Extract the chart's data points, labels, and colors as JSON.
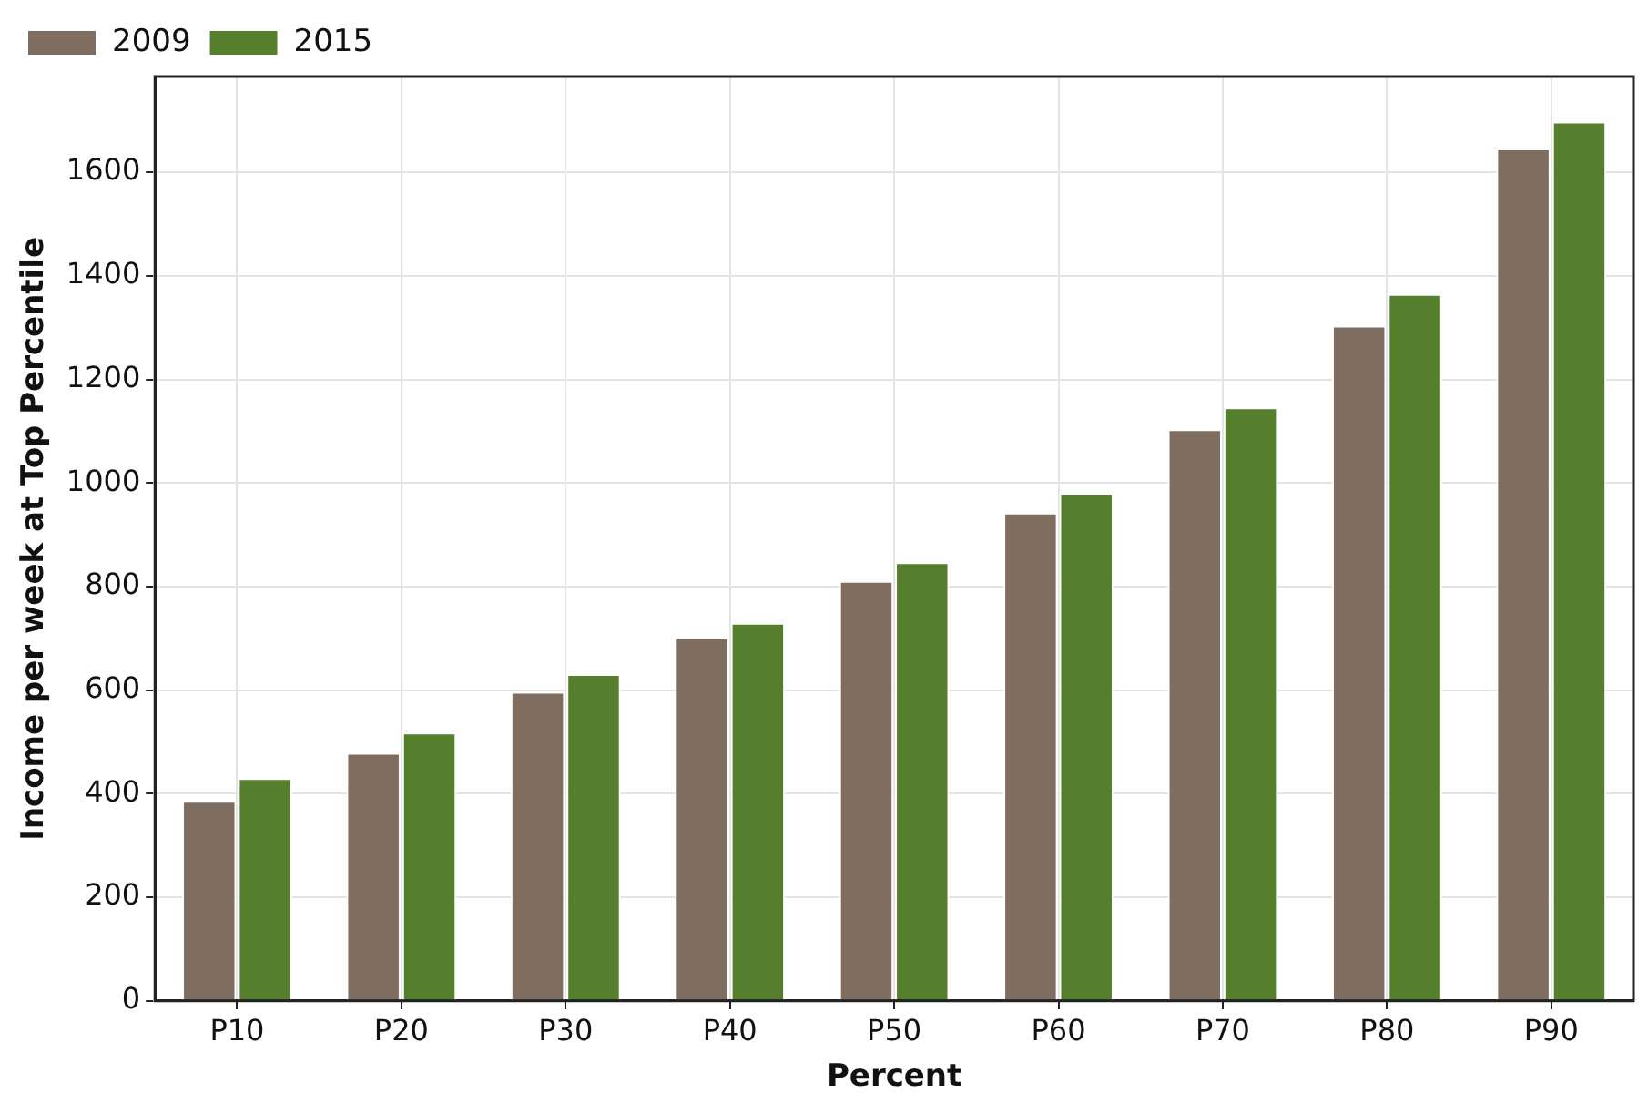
{
  "chart_data": {
    "type": "bar",
    "xlabel": "Percent",
    "ylabel": "Income per week at Top Percentile",
    "categories": [
      "P10",
      "P20",
      "P30",
      "P40",
      "P50",
      "P60",
      "P70",
      "P80",
      "P90"
    ],
    "series": [
      {
        "name": "2009",
        "color": "#7f6d5f",
        "values": [
          386,
          479,
          597,
          702,
          811,
          943,
          1104,
          1304,
          1646
        ]
      },
      {
        "name": "2015",
        "color": "#557f2d",
        "values": [
          430,
          518,
          631,
          730,
          847,
          981,
          1146,
          1365,
          1698
        ]
      }
    ],
    "ylim": [
      0,
      1785
    ],
    "yticks": [
      0,
      200,
      400,
      600,
      800,
      1000,
      1200,
      1400,
      1600
    ],
    "grid": true,
    "legend": "top left"
  }
}
